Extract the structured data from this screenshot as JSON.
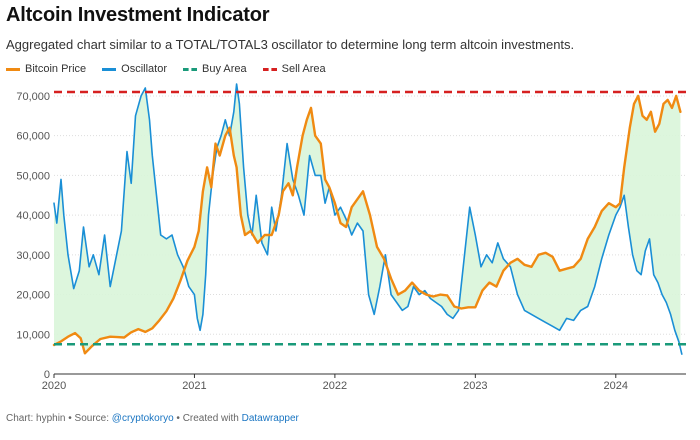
{
  "title": "Altcoin Investment Indicator",
  "subtitle": "Aggregated chart similar to a TOTAL/TOTAL3 oscillator to determine long term altcoin investments.",
  "legend": {
    "bitcoin": "Bitcoin Price",
    "oscillator": "Oscillator",
    "buy": "Buy Area",
    "sell": "Sell Area"
  },
  "colors": {
    "bitcoin": "#f08a12",
    "oscillator": "#1a8fd6",
    "buy": "#1a9a7a",
    "sell": "#d62020",
    "fill": "#d9f5d9",
    "grid": "#dddddd"
  },
  "footer": {
    "chart_label": "Chart: hyphin",
    "sep1": " • Source: ",
    "source": "@cryptokoryo",
    "sep2": " • Created with ",
    "tool": "Datawrapper"
  },
  "chart_data": {
    "type": "line",
    "title": "Altcoin Investment Indicator",
    "xlabel": "",
    "ylabel": "",
    "xlim": [
      2020.0,
      2024.5
    ],
    "ylim": [
      0,
      72000
    ],
    "y_ticks": [
      {
        "value": 0,
        "label": "0"
      },
      {
        "value": 10000,
        "label": "10,000"
      },
      {
        "value": 20000,
        "label": "20,000"
      },
      {
        "value": 30000,
        "label": "30,000"
      },
      {
        "value": 40000,
        "label": "40,000"
      },
      {
        "value": 50000,
        "label": "50,000"
      },
      {
        "value": 60000,
        "label": "60,000"
      },
      {
        "value": 70000,
        "label": "70,000"
      }
    ],
    "x_ticks": [
      {
        "value": 2020,
        "label": "2020"
      },
      {
        "value": 2021,
        "label": "2021"
      },
      {
        "value": 2022,
        "label": "2022"
      },
      {
        "value": 2023,
        "label": "2023"
      },
      {
        "value": 2024,
        "label": "2024"
      }
    ],
    "buy_level": 7500,
    "sell_level": 71000,
    "series": [
      {
        "name": "Bitcoin Price",
        "x": [
          2020.0,
          2020.05,
          2020.1,
          2020.15,
          2020.19,
          2020.22,
          2020.27,
          2020.33,
          2020.4,
          2020.45,
          2020.5,
          2020.55,
          2020.6,
          2020.65,
          2020.7,
          2020.75,
          2020.8,
          2020.85,
          2020.9,
          2020.95,
          2021.0,
          2021.03,
          2021.06,
          2021.09,
          2021.12,
          2021.15,
          2021.18,
          2021.22,
          2021.25,
          2021.28,
          2021.3,
          2021.33,
          2021.36,
          2021.4,
          2021.45,
          2021.5,
          2021.55,
          2021.6,
          2021.63,
          2021.67,
          2021.7,
          2021.73,
          2021.77,
          2021.8,
          2021.83,
          2021.86,
          2021.9,
          2021.93,
          2021.96,
          2022.0,
          2022.04,
          2022.08,
          2022.12,
          2022.16,
          2022.2,
          2022.25,
          2022.3,
          2022.35,
          2022.4,
          2022.45,
          2022.5,
          2022.55,
          2022.6,
          2022.65,
          2022.7,
          2022.75,
          2022.8,
          2022.85,
          2022.9,
          2022.95,
          2023.0,
          2023.05,
          2023.1,
          2023.15,
          2023.2,
          2023.25,
          2023.3,
          2023.35,
          2023.4,
          2023.45,
          2023.5,
          2023.55,
          2023.6,
          2023.65,
          2023.7,
          2023.75,
          2023.8,
          2023.85,
          2023.9,
          2023.95,
          2024.0,
          2024.03,
          2024.06,
          2024.1,
          2024.13,
          2024.16,
          2024.19,
          2024.22,
          2024.25,
          2024.28,
          2024.31,
          2024.34,
          2024.37,
          2024.4,
          2024.43,
          2024.46
        ],
        "values": [
          7300,
          8200,
          9400,
          10300,
          9000,
          5200,
          7000,
          8800,
          9400,
          9300,
          9200,
          10500,
          11300,
          10600,
          11500,
          13500,
          15800,
          19000,
          23500,
          28500,
          32000,
          36000,
          46000,
          52000,
          47000,
          58000,
          55000,
          60000,
          62000,
          55000,
          52000,
          40000,
          35000,
          36000,
          33000,
          35000,
          35000,
          40000,
          46000,
          48000,
          45000,
          52000,
          60000,
          64000,
          67000,
          60000,
          58000,
          49000,
          47000,
          43000,
          38000,
          37000,
          42000,
          44000,
          46000,
          40000,
          32000,
          29000,
          24000,
          20000,
          21000,
          23000,
          21000,
          20000,
          19500,
          20000,
          19800,
          17000,
          16500,
          16800,
          16800,
          21000,
          23000,
          22000,
          26000,
          28000,
          29000,
          27500,
          27000,
          30000,
          30500,
          29500,
          26000,
          26500,
          27000,
          29000,
          34000,
          37000,
          41000,
          43000,
          42000,
          43000,
          52000,
          62000,
          68000,
          70000,
          65000,
          64000,
          66000,
          61000,
          63000,
          68000,
          69000,
          67000,
          70000,
          66000
        ]
      },
      {
        "name": "Oscillator",
        "x": [
          2020.0,
          2020.02,
          2020.05,
          2020.07,
          2020.1,
          2020.14,
          2020.18,
          2020.21,
          2020.25,
          2020.28,
          2020.32,
          2020.36,
          2020.4,
          2020.44,
          2020.48,
          2020.52,
          2020.55,
          2020.58,
          2020.62,
          2020.65,
          2020.68,
          2020.7,
          2020.73,
          2020.76,
          2020.8,
          2020.84,
          2020.88,
          2020.92,
          2020.96,
          2021.0,
          2021.02,
          2021.04,
          2021.06,
          2021.08,
          2021.1,
          2021.13,
          2021.16,
          2021.19,
          2021.22,
          2021.25,
          2021.28,
          2021.3,
          2021.32,
          2021.35,
          2021.38,
          2021.41,
          2021.44,
          2021.48,
          2021.52,
          2021.55,
          2021.58,
          2021.62,
          2021.66,
          2021.7,
          2021.74,
          2021.78,
          2021.82,
          2021.86,
          2021.9,
          2021.93,
          2021.96,
          2022.0,
          2022.04,
          2022.08,
          2022.12,
          2022.16,
          2022.2,
          2022.24,
          2022.28,
          2022.32,
          2022.36,
          2022.4,
          2022.44,
          2022.48,
          2022.52,
          2022.56,
          2022.6,
          2022.64,
          2022.68,
          2022.72,
          2022.76,
          2022.8,
          2022.84,
          2022.88,
          2022.92,
          2022.96,
          2023.0,
          2023.04,
          2023.08,
          2023.12,
          2023.16,
          2023.2,
          2023.25,
          2023.3,
          2023.35,
          2023.4,
          2023.45,
          2023.5,
          2023.55,
          2023.6,
          2023.65,
          2023.7,
          2023.75,
          2023.8,
          2023.85,
          2023.9,
          2023.95,
          2024.0,
          2024.03,
          2024.06,
          2024.09,
          2024.12,
          2024.15,
          2024.18,
          2024.21,
          2024.24,
          2024.27,
          2024.3,
          2024.33,
          2024.36,
          2024.39,
          2024.42,
          2024.45,
          2024.47
        ],
        "values": [
          43000,
          38000,
          49000,
          40000,
          30000,
          21500,
          26000,
          37000,
          27000,
          30000,
          25000,
          35000,
          22000,
          29000,
          36000,
          56000,
          48000,
          65000,
          70000,
          72000,
          64000,
          55000,
          45000,
          35000,
          34000,
          35000,
          30000,
          27000,
          22000,
          20000,
          14000,
          11000,
          15000,
          25000,
          40000,
          50000,
          57000,
          60000,
          64000,
          60000,
          66000,
          73000,
          68000,
          52000,
          40000,
          35000,
          45000,
          33000,
          30000,
          42000,
          36000,
          45000,
          58000,
          49000,
          45000,
          40000,
          55000,
          50000,
          50000,
          43000,
          47000,
          40000,
          42000,
          39000,
          35000,
          38000,
          36000,
          20000,
          15000,
          22000,
          30000,
          20000,
          18000,
          16000,
          17000,
          22000,
          20000,
          21000,
          19000,
          18000,
          17000,
          15000,
          14000,
          16000,
          29000,
          42000,
          35000,
          27000,
          30000,
          28000,
          33000,
          29000,
          27000,
          20000,
          16000,
          15000,
          14000,
          13000,
          12000,
          11000,
          14000,
          13500,
          16000,
          17000,
          22000,
          29000,
          35000,
          40000,
          42000,
          45000,
          37000,
          30000,
          26000,
          25000,
          31000,
          34000,
          25000,
          23000,
          20000,
          18000,
          15000,
          11000,
          8000,
          5000
        ]
      }
    ]
  }
}
